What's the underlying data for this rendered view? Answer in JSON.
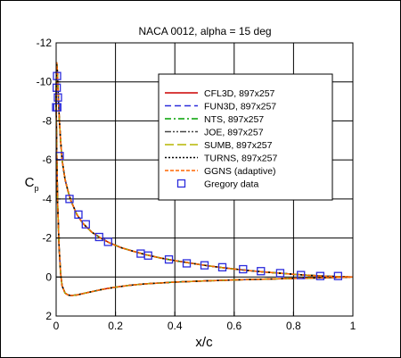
{
  "chart_data": {
    "type": "line",
    "title": "NACA 0012, alpha = 15 deg",
    "xlabel": "x/c",
    "ylabel": "C",
    "ylabel_subscript": "p",
    "xlim": [
      0,
      1
    ],
    "ylim": [
      -12,
      2
    ],
    "y_inverted": true,
    "grid": true,
    "legend_position": "upper-right",
    "xticks": [
      {
        "value": 0,
        "label": "0"
      },
      {
        "value": 0.2,
        "label": "0.2"
      },
      {
        "value": 0.4,
        "label": "0.4"
      },
      {
        "value": 0.6,
        "label": "0.6"
      },
      {
        "value": 0.8,
        "label": "0.8"
      },
      {
        "value": 1,
        "label": "1"
      }
    ],
    "yticks": [
      {
        "value": -12,
        "label": "-12"
      },
      {
        "value": -10,
        "label": "-10"
      },
      {
        "value": -8,
        "label": "-8"
      },
      {
        "value": -6,
        "label": "-6"
      },
      {
        "value": -4,
        "label": "-4"
      },
      {
        "value": -2,
        "label": "-2"
      },
      {
        "value": 0,
        "label": "0"
      },
      {
        "value": 2,
        "label": "2"
      }
    ],
    "upper_surface": {
      "x": [
        0.0,
        0.001,
        0.002,
        0.004,
        0.006,
        0.008,
        0.011,
        0.015,
        0.02,
        0.03,
        0.04,
        0.05,
        0.07,
        0.09,
        0.12,
        0.15,
        0.18,
        0.22,
        0.26,
        0.3,
        0.35,
        0.4,
        0.45,
        0.5,
        0.55,
        0.6,
        0.65,
        0.7,
        0.75,
        0.8,
        0.85,
        0.9,
        0.95,
        1.0
      ],
      "cp": [
        -9.0,
        -10.6,
        -11.0,
        -10.6,
        -9.8,
        -9.0,
        -8.0,
        -7.0,
        -6.0,
        -5.0,
        -4.4,
        -3.9,
        -3.2,
        -2.75,
        -2.3,
        -2.0,
        -1.75,
        -1.5,
        -1.32,
        -1.15,
        -0.98,
        -0.84,
        -0.72,
        -0.6,
        -0.5,
        -0.41,
        -0.33,
        -0.26,
        -0.2,
        -0.14,
        -0.09,
        -0.05,
        -0.02,
        0.0
      ]
    },
    "lower_surface": {
      "x": [
        0.0,
        0.002,
        0.005,
        0.01,
        0.015,
        0.02,
        0.03,
        0.04,
        0.05,
        0.07,
        0.09,
        0.12,
        0.16,
        0.2,
        0.25,
        0.3,
        0.4,
        0.5,
        0.6,
        0.7,
        0.8,
        0.9,
        1.0
      ],
      "cp": [
        -9.0,
        -6.5,
        -3.8,
        -1.5,
        -0.2,
        0.45,
        0.82,
        0.92,
        0.95,
        0.92,
        0.85,
        0.75,
        0.62,
        0.52,
        0.42,
        0.35,
        0.26,
        0.2,
        0.15,
        0.11,
        0.07,
        0.04,
        0.0
      ]
    },
    "series": [
      {
        "name": "CFL3D, 897x257",
        "color": "#cc0000",
        "dash": "solid"
      },
      {
        "name": "FUN3D, 897x257",
        "color": "#2b2bdc",
        "dash": "dashed"
      },
      {
        "name": "NTS, 897x257",
        "color": "#00a000",
        "dash": "dash-dot"
      },
      {
        "name": "JOE, 897x257",
        "color": "#444444",
        "dash": "dash-dot-dot"
      },
      {
        "name": "SUMB, 897x257",
        "color": "#b5b500",
        "dash": "long-dash"
      },
      {
        "name": "TURNS, 897x257",
        "color": "#000000",
        "dash": "dotted"
      },
      {
        "name": "GGNS (adaptive)",
        "color": "#ff6600",
        "dash": "short-dash"
      }
    ],
    "experimental": {
      "name": "Gregory data",
      "color": "#2b2bdc",
      "marker": "open-square",
      "x": [
        0.0,
        0.003,
        0.006,
        0.002,
        0.004,
        0.012,
        0.045,
        0.075,
        0.1,
        0.145,
        0.175,
        0.285,
        0.31,
        0.38,
        0.44,
        0.5,
        0.56,
        0.63,
        0.69,
        0.755,
        0.825,
        0.89,
        0.95
      ],
      "cp": [
        -8.7,
        -10.3,
        -9.2,
        -9.7,
        -8.7,
        -6.2,
        -4.0,
        -3.2,
        -2.7,
        -2.05,
        -1.8,
        -1.2,
        -1.1,
        -0.9,
        -0.7,
        -0.6,
        -0.5,
        -0.4,
        -0.3,
        -0.2,
        -0.1,
        -0.05,
        -0.05
      ]
    }
  }
}
